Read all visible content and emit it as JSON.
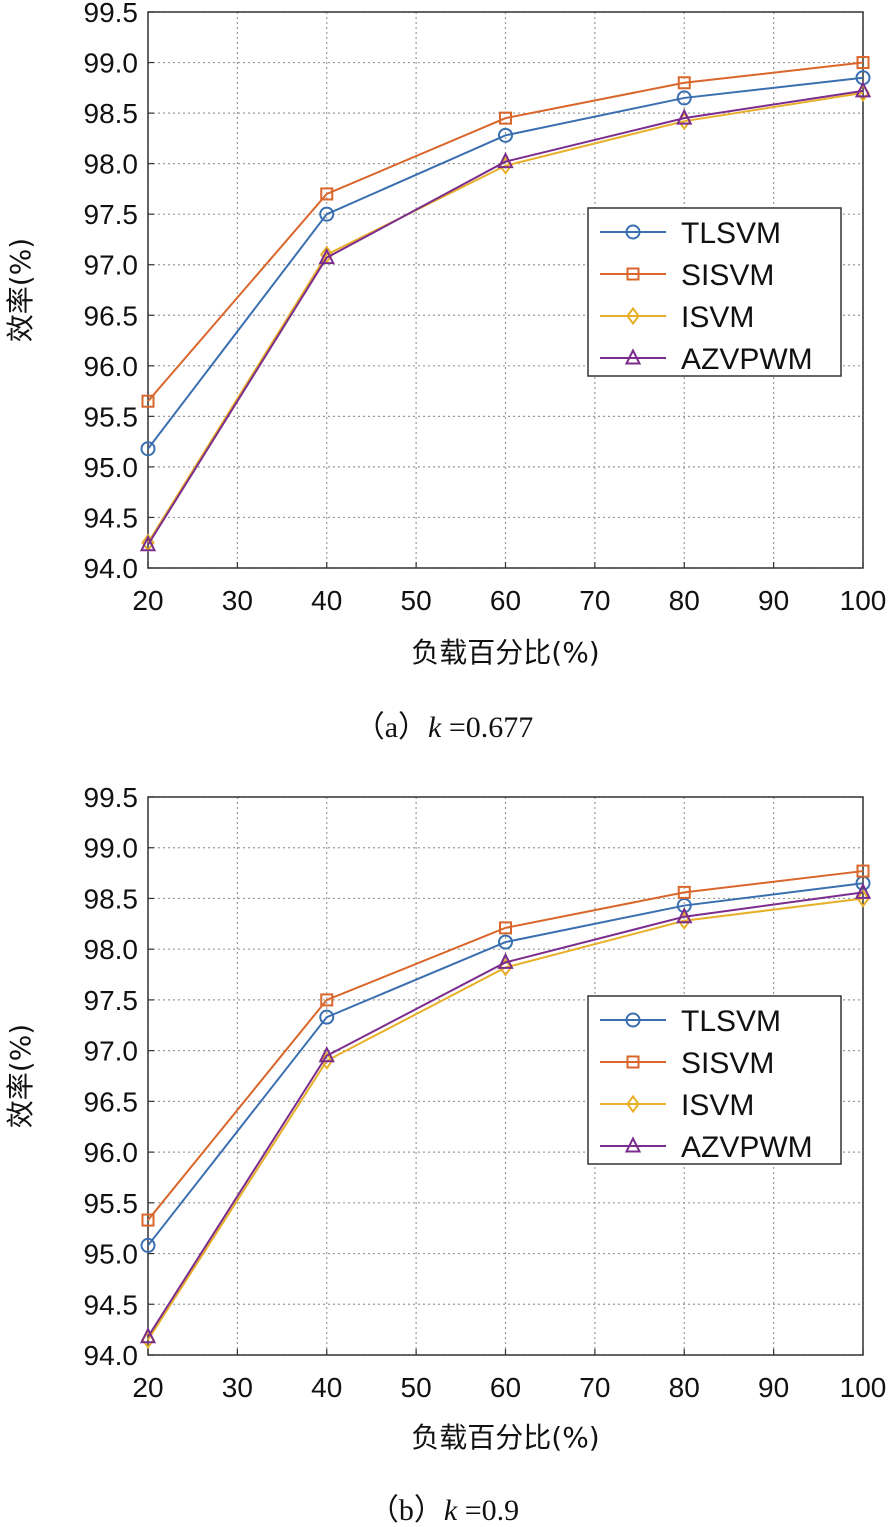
{
  "chart_data": [
    {
      "type": "line",
      "panel": "a",
      "caption": {
        "prefix": "（a）",
        "var": "k",
        "suffix": " =0.677"
      },
      "xlabel": "负载百分比(%)",
      "ylabel": "效率(%)",
      "xlim": [
        20,
        100
      ],
      "ylim": [
        94.0,
        99.5
      ],
      "xticks": [
        20,
        30,
        40,
        50,
        60,
        70,
        80,
        90,
        100
      ],
      "yticks": [
        "94.0",
        "94.5",
        "95.0",
        "95.5",
        "96.0",
        "96.5",
        "97.0",
        "97.5",
        "98.0",
        "98.5",
        "99.0",
        "99.5"
      ],
      "grid": true,
      "legend_position": "center-right",
      "x": [
        20,
        40,
        60,
        80,
        100
      ],
      "series": [
        {
          "name": "TLSVM",
          "color": "#3a6fb0",
          "marker": "circle",
          "values": [
            95.18,
            97.5,
            98.28,
            98.65,
            98.85
          ]
        },
        {
          "name": "SISVM",
          "color": "#d9662b",
          "marker": "square",
          "values": [
            95.65,
            97.7,
            98.45,
            98.8,
            99.0
          ]
        },
        {
          "name": "ISVM",
          "color": "#e8b02a",
          "marker": "diamond",
          "values": [
            94.25,
            97.1,
            97.98,
            98.42,
            98.7
          ]
        },
        {
          "name": "AZVPWM",
          "color": "#7b2d8e",
          "marker": "triangle",
          "values": [
            94.23,
            97.07,
            98.02,
            98.45,
            98.72
          ]
        }
      ]
    },
    {
      "type": "line",
      "panel": "b",
      "caption": {
        "prefix": "（b）",
        "var": "k",
        "suffix": " =0.9"
      },
      "xlabel": "负载百分比(%)",
      "ylabel": "效率(%)",
      "xlim": [
        20,
        100
      ],
      "ylim": [
        94.0,
        99.5
      ],
      "xticks": [
        20,
        30,
        40,
        50,
        60,
        70,
        80,
        90,
        100
      ],
      "yticks": [
        "94.0",
        "94.5",
        "95.0",
        "95.5",
        "96.0",
        "96.5",
        "97.0",
        "97.5",
        "98.0",
        "98.5",
        "99.0",
        "99.5"
      ],
      "grid": true,
      "legend_position": "center-right",
      "x": [
        20,
        40,
        60,
        80,
        100
      ],
      "series": [
        {
          "name": "TLSVM",
          "color": "#3a6fb0",
          "marker": "circle",
          "values": [
            95.08,
            97.33,
            98.07,
            98.43,
            98.65
          ]
        },
        {
          "name": "SISVM",
          "color": "#d9662b",
          "marker": "square",
          "values": [
            95.33,
            97.5,
            98.21,
            98.56,
            98.77
          ]
        },
        {
          "name": "ISVM",
          "color": "#e8b02a",
          "marker": "diamond",
          "values": [
            94.15,
            96.9,
            97.82,
            98.28,
            98.5
          ]
        },
        {
          "name": "AZVPWM",
          "color": "#7b2d8e",
          "marker": "triangle",
          "values": [
            94.18,
            96.95,
            97.87,
            98.32,
            98.56
          ]
        }
      ]
    }
  ]
}
